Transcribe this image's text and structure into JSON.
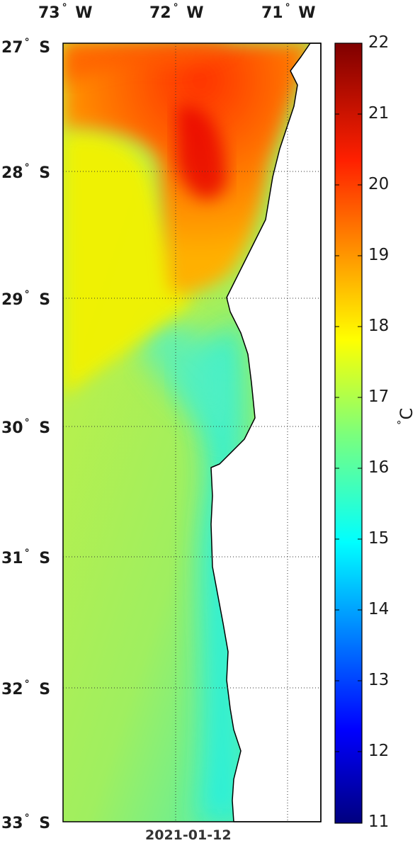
{
  "map": {
    "date": "2021-01-12",
    "unit_label": "C",
    "degree_symbol": "°",
    "lon_labels": [
      {
        "deg": "73",
        "hem": "W"
      },
      {
        "deg": "72",
        "hem": "W"
      },
      {
        "deg": "71",
        "hem": "W"
      }
    ],
    "lat_labels": [
      {
        "deg": "27",
        "hem": "S"
      },
      {
        "deg": "28",
        "hem": "S"
      },
      {
        "deg": "29",
        "hem": "S"
      },
      {
        "deg": "30",
        "hem": "S"
      },
      {
        "deg": "31",
        "hem": "S"
      },
      {
        "deg": "32",
        "hem": "S"
      },
      {
        "deg": "33",
        "hem": "S"
      }
    ],
    "colorbar": {
      "min": 11,
      "max": 22,
      "ticks": [
        "22",
        "21",
        "20",
        "19",
        "18",
        "17",
        "16",
        "15",
        "14",
        "13",
        "12",
        "11"
      ]
    },
    "colors": {
      "land": "#ffffff",
      "coast": "#000000",
      "grid": "#333333"
    }
  }
}
